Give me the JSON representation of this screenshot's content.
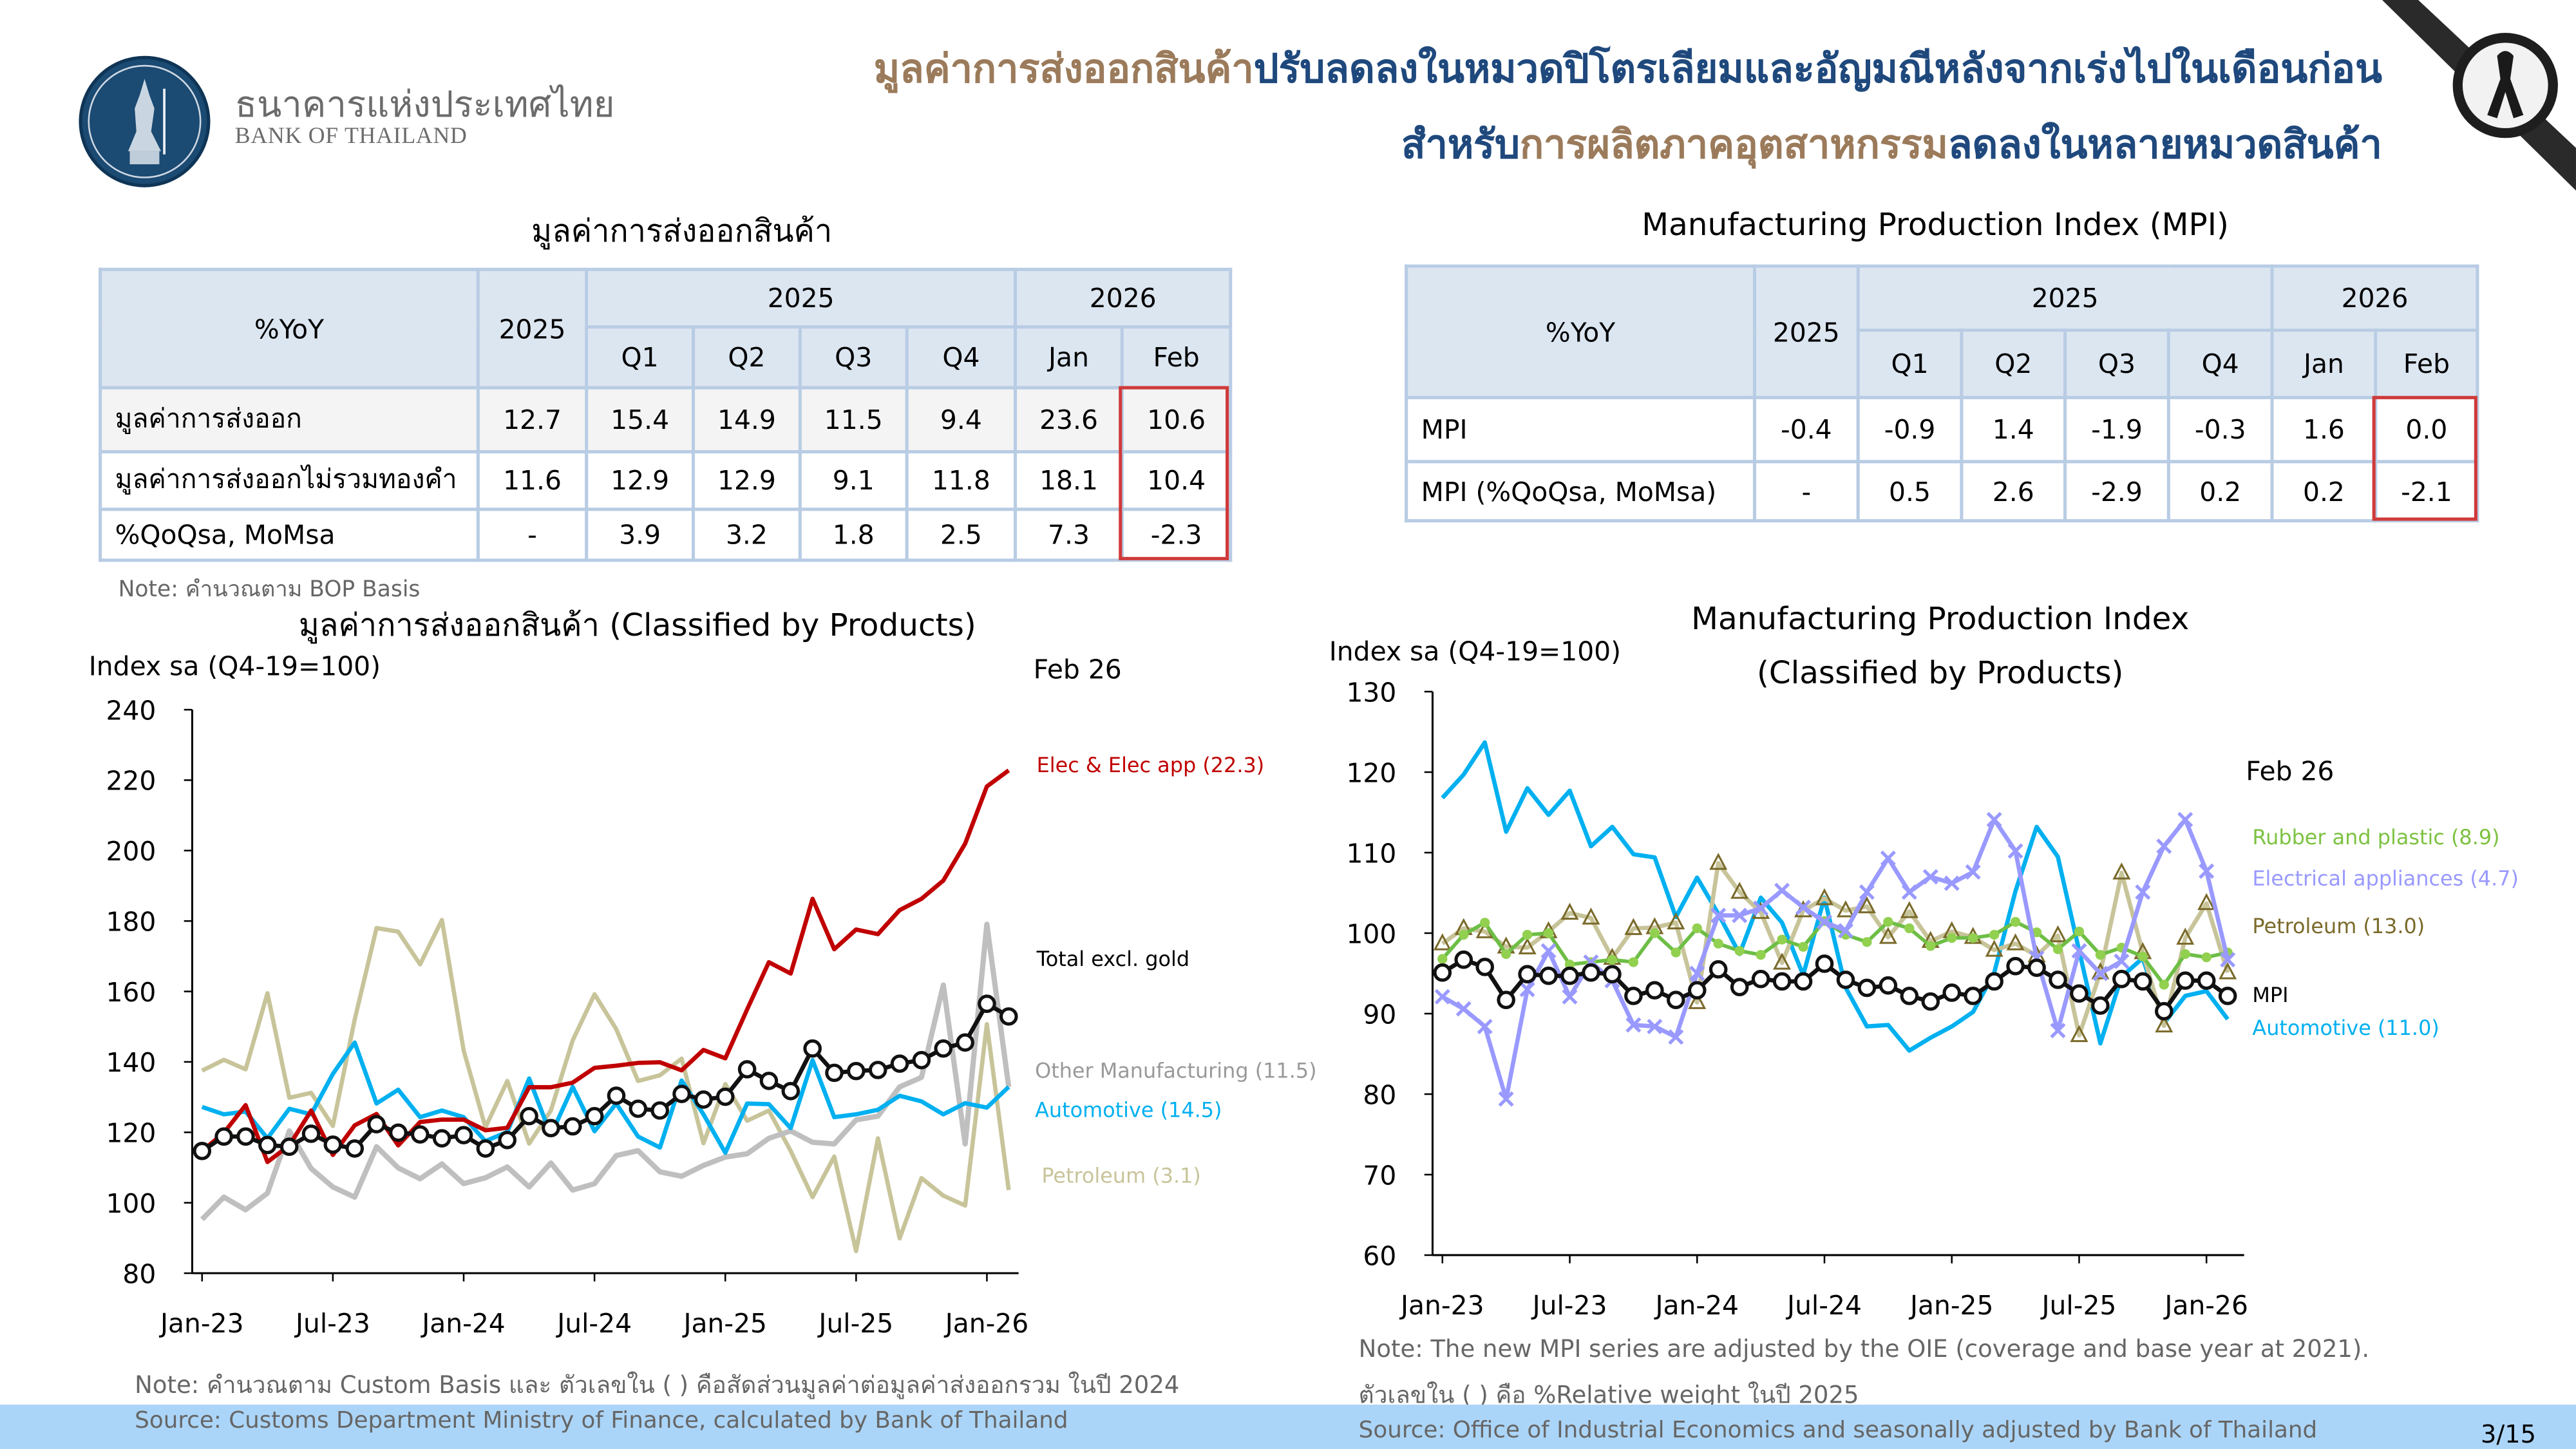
{
  "header": {
    "logo_th": "ธนาคารแห่งประเทศไทย",
    "logo_en": "BANK OF THAILAND",
    "headline_line1": [
      {
        "text": "มูลค่าการส่งออกสินค้า",
        "color": "#9B7B5B"
      },
      {
        "text": "ปรับลดลงในหมวดปิโตรเลียมและอัญมณีหลังจากเร่งไปในเดือนก่อน",
        "color": "#1F497D"
      }
    ],
    "headline_line2": [
      {
        "text": "สำหรับ",
        "color": "#1F497D"
      },
      {
        "text": "การผลิตภาคอุตสาหกรรม",
        "color": "#9B7B5B"
      },
      {
        "text": "ลดลงในหลายหมวดสินค้า",
        "color": "#1F497D"
      }
    ],
    "ribbon_icon": "black-mourning-ribbon-icon"
  },
  "exports_table": {
    "title": "มูลค่าการส่งออกสินค้า",
    "corner": "%YoY",
    "year_col": "2025",
    "group_2025": "2025",
    "group_2026": "2026",
    "subcols": [
      "Q1",
      "Q2",
      "Q3",
      "Q4",
      "Jan",
      "Feb"
    ],
    "rows": [
      {
        "label": "มูลค่าการส่งออก",
        "values": [
          "12.7",
          "15.4",
          "14.9",
          "11.5",
          "9.4",
          "23.6",
          "10.6"
        ]
      },
      {
        "label": "มูลค่าการส่งออกไม่รวมทองคำ",
        "values": [
          "11.6",
          "12.9",
          "12.9",
          "9.1",
          "11.8",
          "18.1",
          "10.4"
        ]
      },
      {
        "label": "%QoQsa, MoMsa",
        "values": [
          "-",
          "3.9",
          "3.2",
          "1.8",
          "2.5",
          "7.3",
          "-2.3"
        ]
      }
    ],
    "note": "Note: คำนวณตาม BOP Basis"
  },
  "mpi_table": {
    "title": "Manufacturing Production Index (MPI)",
    "corner": "%YoY",
    "year_col": "2025",
    "group_2025": "2025",
    "group_2026": "2026",
    "subcols": [
      "Q1",
      "Q2",
      "Q3",
      "Q4",
      "Jan",
      "Feb"
    ],
    "rows": [
      {
        "label": "MPI",
        "values": [
          "-0.4",
          "-0.9",
          "1.4",
          "-1.9",
          "-0.3",
          "1.6",
          "0.0"
        ]
      },
      {
        "label": "MPI (%QoQsa, MoMsa)",
        "values": [
          "-",
          "0.5",
          "2.6",
          "-2.9",
          "0.2",
          "0.2",
          "-2.1"
        ]
      }
    ]
  },
  "chart_data": [
    {
      "type": "line",
      "title": "มูลค่าการส่งออกสินค้า (Classified by Products)",
      "ylabel": "Index sa (Q4-19=100)",
      "annotation": "Feb 26",
      "ylim": [
        80,
        240
      ],
      "yticks": [
        80,
        100,
        120,
        140,
        160,
        180,
        200,
        220,
        240
      ],
      "xtick_labels": [
        "Jan-23",
        "Jul-23",
        "Jan-24",
        "Jul-24",
        "Jan-25",
        "Jul-25",
        "Jan-26"
      ],
      "x": [
        "Jan-23",
        "Feb-23",
        "Mar-23",
        "Apr-23",
        "May-23",
        "Jun-23",
        "Jul-23",
        "Aug-23",
        "Sep-23",
        "Oct-23",
        "Nov-23",
        "Dec-23",
        "Jan-24",
        "Feb-24",
        "Mar-24",
        "Apr-24",
        "May-24",
        "Jun-24",
        "Jul-24",
        "Aug-24",
        "Sep-24",
        "Oct-24",
        "Nov-24",
        "Dec-24",
        "Jan-25",
        "Feb-25",
        "Mar-25",
        "Apr-25",
        "May-25",
        "Jun-25",
        "Jul-25",
        "Aug-25",
        "Sep-25",
        "Oct-25",
        "Nov-25",
        "Dec-25",
        "Jan-26",
        "Feb-26"
      ],
      "grid": false,
      "note": "Note: คำนวณตาม Custom Basis และ ตัวเลขใน ( ) คือสัดส่วนมูลค่าต่อมูลค่าส่งออกรวม ในปี 2024",
      "source": "Source: Customs Department Ministry of Finance, calculated by Bank of Thailand",
      "series": [
        {
          "name": "Petroleum (3.1)",
          "color": "#C8C49A",
          "marker": "none",
          "label_color": "#C8C49A",
          "values": [
            137.5,
            140.6,
            137.9,
            159.5,
            129.8,
            131.2,
            121.8,
            152,
            178,
            177,
            167.7,
            180.3,
            143.3,
            121.4,
            134.6,
            116.8,
            126.2,
            146.1,
            159.2,
            149.3,
            134.6,
            136.2,
            140.9,
            116.9,
            133.7,
            123.3,
            126.2,
            114.7,
            101.6,
            113.1,
            86.3,
            118.3,
            89.9,
            107,
            102,
            99.2,
            150.7,
            103.6
          ]
        },
        {
          "name": "Other Manufacturing (11.5)",
          "color": "#BFBFBF",
          "marker": "none",
          "label_color": "#999999",
          "values": [
            95.3,
            101.6,
            98,
            102.7,
            120.4,
            109.7,
            104.5,
            101.6,
            115.9,
            109.9,
            106.8,
            111,
            105.4,
            107.1,
            110.2,
            104.5,
            111.3,
            103.6,
            105.4,
            113.4,
            114.8,
            108.8,
            107.5,
            110.6,
            113,
            113.9,
            118.3,
            120.4,
            117.2,
            116.7,
            123.5,
            124.6,
            132.9,
            135.6,
            161.8,
            116.7,
            179.1,
            132.9
          ]
        },
        {
          "name": "Automotive (14.5)",
          "color": "#00B0F0",
          "marker": "none",
          "label_color": "#00B0F0",
          "values": [
            127.2,
            125.1,
            125.9,
            118.3,
            126.7,
            125.1,
            136.6,
            145.5,
            128.2,
            132.1,
            124.3,
            126.2,
            124.3,
            117.5,
            120.1,
            135.3,
            119.2,
            132.9,
            120.3,
            128.2,
            118.8,
            115.7,
            134.7,
            125.1,
            114.2,
            128.2,
            128,
            121.2,
            140.5,
            124.3,
            125.1,
            126.4,
            130.4,
            128.8,
            125.1,
            128.3,
            127,
            132.9
          ]
        },
        {
          "name": "Elec & Elec app (22.3)",
          "color": "#C00000",
          "marker": "none",
          "label_color": "#C00000",
          "values": [
            114.7,
            119.9,
            127.7,
            111.6,
            116.3,
            126.2,
            113.6,
            122,
            125.2,
            116.3,
            122.9,
            123.6,
            123.6,
            120.6,
            121.3,
            132.8,
            132.8,
            134.1,
            138.3,
            138.9,
            139.7,
            139.9,
            137.6,
            143.4,
            141,
            154.9,
            168.3,
            165.1,
            186.3,
            172,
            177.6,
            176.3,
            183.1,
            186.3,
            191.5,
            202,
            218.2,
            222.8
          ]
        },
        {
          "name": "Total excl. gold",
          "color": "#111111",
          "marker": "circle",
          "label_color": "#000000",
          "values": [
            114.7,
            118.8,
            118.8,
            116.4,
            115.9,
            119.6,
            116.5,
            115.4,
            122.3,
            119.9,
            119.4,
            118.3,
            119.2,
            115.4,
            117.8,
            124.6,
            121.2,
            121.7,
            124.6,
            130.4,
            126.7,
            126.2,
            130.9,
            129.3,
            130.1,
            137.9,
            134.6,
            131.7,
            143.8,
            136.9,
            137.4,
            137.7,
            139.5,
            140.5,
            143.8,
            145.5,
            156.5,
            152.9
          ]
        }
      ]
    },
    {
      "type": "line",
      "title": "Manufacturing Production Index",
      "subtitle": "(Classified by Products)",
      "ylabel": "Index sa (Q4-19=100)",
      "annotation": "Feb 26",
      "ylim": [
        60,
        130
      ],
      "yticks": [
        60,
        70,
        80,
        90,
        100,
        110,
        120,
        130
      ],
      "xtick_labels": [
        "Jan-23",
        "Jul-23",
        "Jan-24",
        "Jul-24",
        "Jan-25",
        "Jul-25",
        "Jan-26"
      ],
      "x": [
        "Jan-23",
        "Feb-23",
        "Mar-23",
        "Apr-23",
        "May-23",
        "Jun-23",
        "Jul-23",
        "Aug-23",
        "Sep-23",
        "Oct-23",
        "Nov-23",
        "Dec-23",
        "Jan-24",
        "Feb-24",
        "Mar-24",
        "Apr-24",
        "May-24",
        "Jun-24",
        "Jul-24",
        "Aug-24",
        "Sep-24",
        "Oct-24",
        "Nov-24",
        "Dec-24",
        "Jan-25",
        "Feb-25",
        "Mar-25",
        "Apr-25",
        "May-25",
        "Jun-25",
        "Jul-25",
        "Aug-25",
        "Sep-25",
        "Oct-25",
        "Nov-25",
        "Dec-25",
        "Jan-26",
        "Feb-26"
      ],
      "grid": false,
      "note": "Note: The new MPI series are adjusted by the OIE (coverage and base year at 2021).",
      "note2": "ตัวเลขใน ( ) คือ %Relative weight ในปี 2025",
      "source": "Source: Office of Industrial Economics and seasonally adjusted by Bank of Thailand",
      "series": [
        {
          "name": "Automotive (11.0)",
          "color": "#00B0F0",
          "marker": "none",
          "label_color": "#00B0F0",
          "values": [
            116.8,
            119.7,
            123.7,
            112.6,
            118,
            114.7,
            117.7,
            110.8,
            113.2,
            109.8,
            109.4,
            102,
            106.9,
            102.4,
            97.4,
            104.4,
            101.3,
            94.8,
            104.4,
            93.2,
            88.4,
            88.6,
            85.4,
            87,
            88.4,
            90.2,
            95.1,
            105.2,
            113.2,
            109.5,
            97.8,
            86.3,
            94.6,
            96.9,
            88.8,
            92.2,
            92.8,
            89.3
          ]
        },
        {
          "name": "Petroleum (13.0)",
          "color": "#C8C49A",
          "marker": "triangle",
          "marker_color": "#7A6A2A",
          "label_color": "#7A6A2A",
          "values": [
            98.7,
            100.6,
            100.2,
            98.3,
            98.2,
            100.2,
            102.5,
            101.9,
            96.9,
            100.6,
            100.7,
            101.3,
            91.4,
            108.7,
            105.1,
            102.6,
            96.3,
            102.8,
            104.3,
            102.8,
            103.3,
            99.5,
            102.7,
            99,
            100.2,
            99.5,
            97.9,
            98.7,
            97.2,
            99.7,
            87.3,
            95.1,
            107.5,
            97.6,
            88.5,
            99.4,
            103.7,
            95.1
          ]
        },
        {
          "name": "Rubber and plastic (8.9)",
          "color": "#6DBE45",
          "marker": "dot",
          "marker_color": "#92D050",
          "label_color": "#7DC242",
          "values": [
            96.8,
            99.8,
            101.3,
            97.4,
            99.8,
            100,
            96.1,
            96.4,
            96.7,
            96.4,
            100,
            97.6,
            100.6,
            98.7,
            97.8,
            97.3,
            99.2,
            98.3,
            101.5,
            99.8,
            98.9,
            101.4,
            100.6,
            98.4,
            99.4,
            99.4,
            99.8,
            101.4,
            100.1,
            98,
            100.2,
            97.3,
            98.2,
            97.1,
            93.6,
            97.4,
            97,
            97.6
          ]
        },
        {
          "name": "Electrical appliances (4.7)",
          "color": "#9999FF",
          "marker": "x",
          "label_color": "#9999FF",
          "values": [
            92.1,
            90.6,
            88.4,
            79.4,
            93,
            97.8,
            92.1,
            96.4,
            94.1,
            88.6,
            88.4,
            87.1,
            95,
            102.2,
            102.2,
            103.1,
            105.3,
            103.2,
            101.4,
            100.3,
            105.1,
            109.3,
            105.1,
            107,
            106.2,
            107.6,
            114.1,
            110.2,
            96.9,
            87.9,
            97.8,
            95,
            96.5,
            105.1,
            110.8,
            114.1,
            107.7,
            96.7
          ]
        },
        {
          "name": "MPI",
          "color": "#111111",
          "marker": "circle",
          "label_color": "#000000",
          "values": [
            95.1,
            96.7,
            95.8,
            91.7,
            94.9,
            94.7,
            94.7,
            95.1,
            94.9,
            92.2,
            92.9,
            91.7,
            92.9,
            95.5,
            93.3,
            94.3,
            94,
            94,
            96.2,
            94.2,
            93.2,
            93.5,
            92.2,
            91.5,
            92.6,
            92.2,
            94,
            95.9,
            95.7,
            94.2,
            92.5,
            91,
            94.3,
            94,
            90.3,
            94.1,
            94.1,
            92.2
          ]
        }
      ]
    }
  ],
  "footer": {
    "page": "3/15",
    "band_color": "#ABD5F8"
  }
}
